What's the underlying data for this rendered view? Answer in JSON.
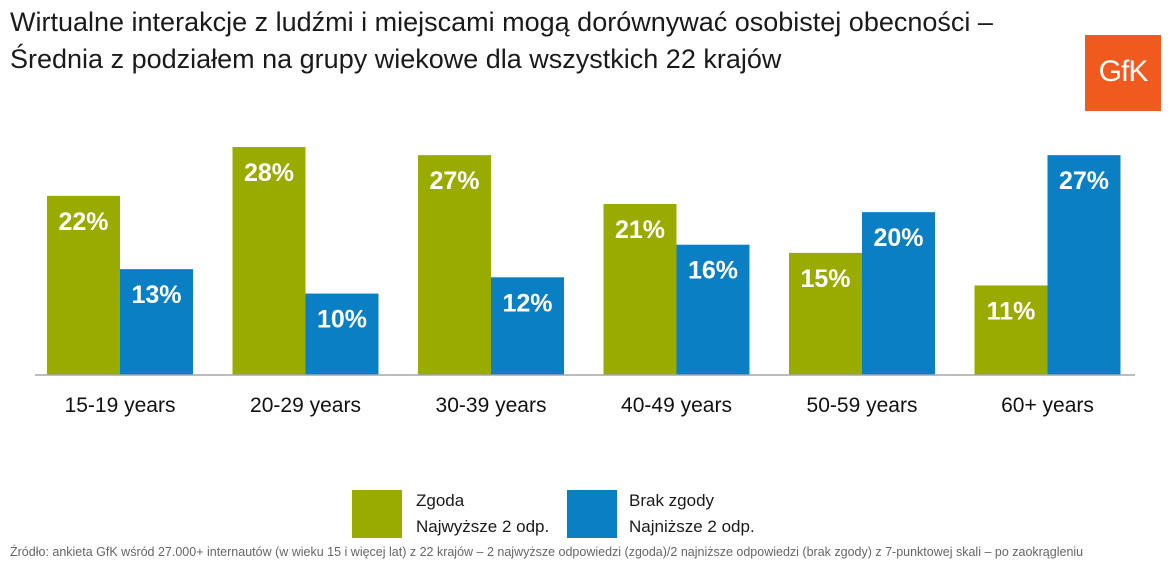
{
  "title": "Wirtualne interakcje z ludźmi i miejscami mogą dorównywać osobistej obecności – Średnia z podziałem na grupy wiekowe dla wszystkich 22 krajów",
  "logo_text": "GfK",
  "colors": {
    "agree": "#9aab00",
    "disagree": "#0a7fc3",
    "logo": "#f05a1e"
  },
  "chart_data": {
    "type": "bar",
    "title": "Wirtualne interakcje z ludźmi i miejscami mogą dorównywać osobistej obecności – Średnia z podziałem na grupy wiekowe dla wszystkich 22 krajów",
    "categories": [
      "15-19 years",
      "20-29 years",
      "30-39 years",
      "40-49 years",
      "50-59 years",
      "60+ years"
    ],
    "series": [
      {
        "name": "Zgoda",
        "sub": "Najwyższe 2 odp.",
        "color": "#9aab00",
        "values": [
          22,
          28,
          27,
          21,
          15,
          11
        ]
      },
      {
        "name": "Brak zgody",
        "sub": "Najniższe 2 odp.",
        "color": "#0a7fc3",
        "values": [
          13,
          10,
          12,
          16,
          20,
          27
        ]
      }
    ],
    "unit": "%",
    "xlabel": "",
    "ylabel": "",
    "ylim": [
      0,
      28
    ],
    "grid": false,
    "legend_position": "bottom"
  },
  "footnote": "Źródło: ankieta GfK wśród 27.000+ internautów (w wieku 15 i więcej lat) z 22 krajów – 2 najwyższe odpowiedzi (zgoda)/2 najniższe odpowiedzi (brak zgody) z 7-punktowej skali – po zaokrągleniu"
}
